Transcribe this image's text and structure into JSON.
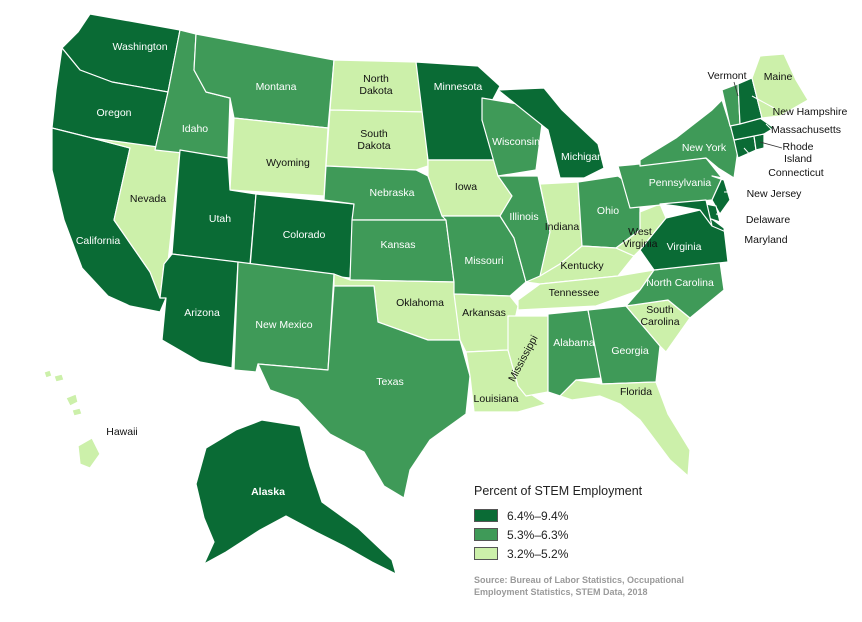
{
  "legend": {
    "title": "Percent of STEM Employment",
    "items": [
      {
        "range": "6.4%–9.4%",
        "color": "#0a6b35"
      },
      {
        "range": "5.3%–6.3%",
        "color": "#3f9a58"
      },
      {
        "range": "3.2%–5.2%",
        "color": "#ccf0aa"
      }
    ]
  },
  "source": "Source: Bureau of Labor Statistics, Occupational Employment Statistics, STEM Data, 2018",
  "states": {
    "washington": {
      "name": "Washington",
      "tier": 1
    },
    "oregon": {
      "name": "Oregon",
      "tier": 1
    },
    "california": {
      "name": "California",
      "tier": 1
    },
    "nevada": {
      "name": "Nevada",
      "tier": 3
    },
    "idaho": {
      "name": "Idaho",
      "tier": 2
    },
    "montana": {
      "name": "Montana",
      "tier": 2
    },
    "wyoming": {
      "name": "Wyoming",
      "tier": 3
    },
    "utah": {
      "name": "Utah",
      "tier": 1
    },
    "arizona": {
      "name": "Arizona",
      "tier": 1
    },
    "colorado": {
      "name": "Colorado",
      "tier": 1
    },
    "new_mexico": {
      "name": "New Mexico",
      "tier": 2
    },
    "north_dakota": {
      "name": "North Dakota",
      "line1": "North",
      "line2": "Dakota",
      "tier": 3
    },
    "south_dakota": {
      "name": "South Dakota",
      "line1": "South",
      "line2": "Dakota",
      "tier": 3
    },
    "nebraska": {
      "name": "Nebraska",
      "tier": 2
    },
    "kansas": {
      "name": "Kansas",
      "tier": 2
    },
    "oklahoma": {
      "name": "Oklahoma",
      "tier": 3
    },
    "texas": {
      "name": "Texas",
      "tier": 2
    },
    "minnesota": {
      "name": "Minnesota",
      "tier": 1
    },
    "iowa": {
      "name": "Iowa",
      "tier": 3
    },
    "missouri": {
      "name": "Missouri",
      "tier": 2
    },
    "arkansas": {
      "name": "Arkansas",
      "tier": 3
    },
    "louisiana": {
      "name": "Louisiana",
      "tier": 3
    },
    "wisconsin": {
      "name": "Wisconsin",
      "tier": 2
    },
    "illinois": {
      "name": "Illinois",
      "tier": 2
    },
    "michigan": {
      "name": "Michigan",
      "tier": 1
    },
    "indiana": {
      "name": "Indiana",
      "tier": 3
    },
    "ohio": {
      "name": "Ohio",
      "tier": 2
    },
    "kentucky": {
      "name": "Kentucky",
      "tier": 3
    },
    "tennessee": {
      "name": "Tennessee",
      "tier": 3
    },
    "mississippi": {
      "name": "Mississippi",
      "tier": 3
    },
    "alabama": {
      "name": "Alabama",
      "tier": 2
    },
    "georgia": {
      "name": "Georgia",
      "tier": 2
    },
    "florida": {
      "name": "Florida",
      "tier": 3
    },
    "south_carolina": {
      "name": "South Carolina",
      "line1": "South",
      "line2": "Carolina",
      "tier": 3
    },
    "north_carolina": {
      "name": "North Carolina",
      "tier": 2
    },
    "virginia": {
      "name": "Virginia",
      "tier": 1
    },
    "west_virginia": {
      "name": "West Virginia",
      "line1": "West",
      "line2": "Virginia",
      "tier": 3
    },
    "pennsylvania": {
      "name": "Pennsylvania",
      "tier": 2
    },
    "new_york": {
      "name": "New York",
      "tier": 2
    },
    "new_jersey": {
      "name": "New Jersey",
      "tier": 1
    },
    "delaware": {
      "name": "Delaware",
      "tier": 1
    },
    "maryland": {
      "name": "Maryland",
      "tier": 1
    },
    "connecticut": {
      "name": "Connecticut",
      "tier": 1
    },
    "rhode_island": {
      "name": "Rhode Island",
      "line1": "Rhode",
      "line2": "Island",
      "tier": 1
    },
    "massachusetts": {
      "name": "Massachusetts",
      "tier": 1
    },
    "vermont": {
      "name": "Vermont",
      "tier": 2
    },
    "new_hampshire": {
      "name": "New Hampshire",
      "tier": 1
    },
    "maine": {
      "name": "Maine",
      "tier": 3
    },
    "alaska": {
      "name": "Alaska",
      "tier": 1
    },
    "hawaii": {
      "name": "Hawaii",
      "tier": 3
    }
  }
}
